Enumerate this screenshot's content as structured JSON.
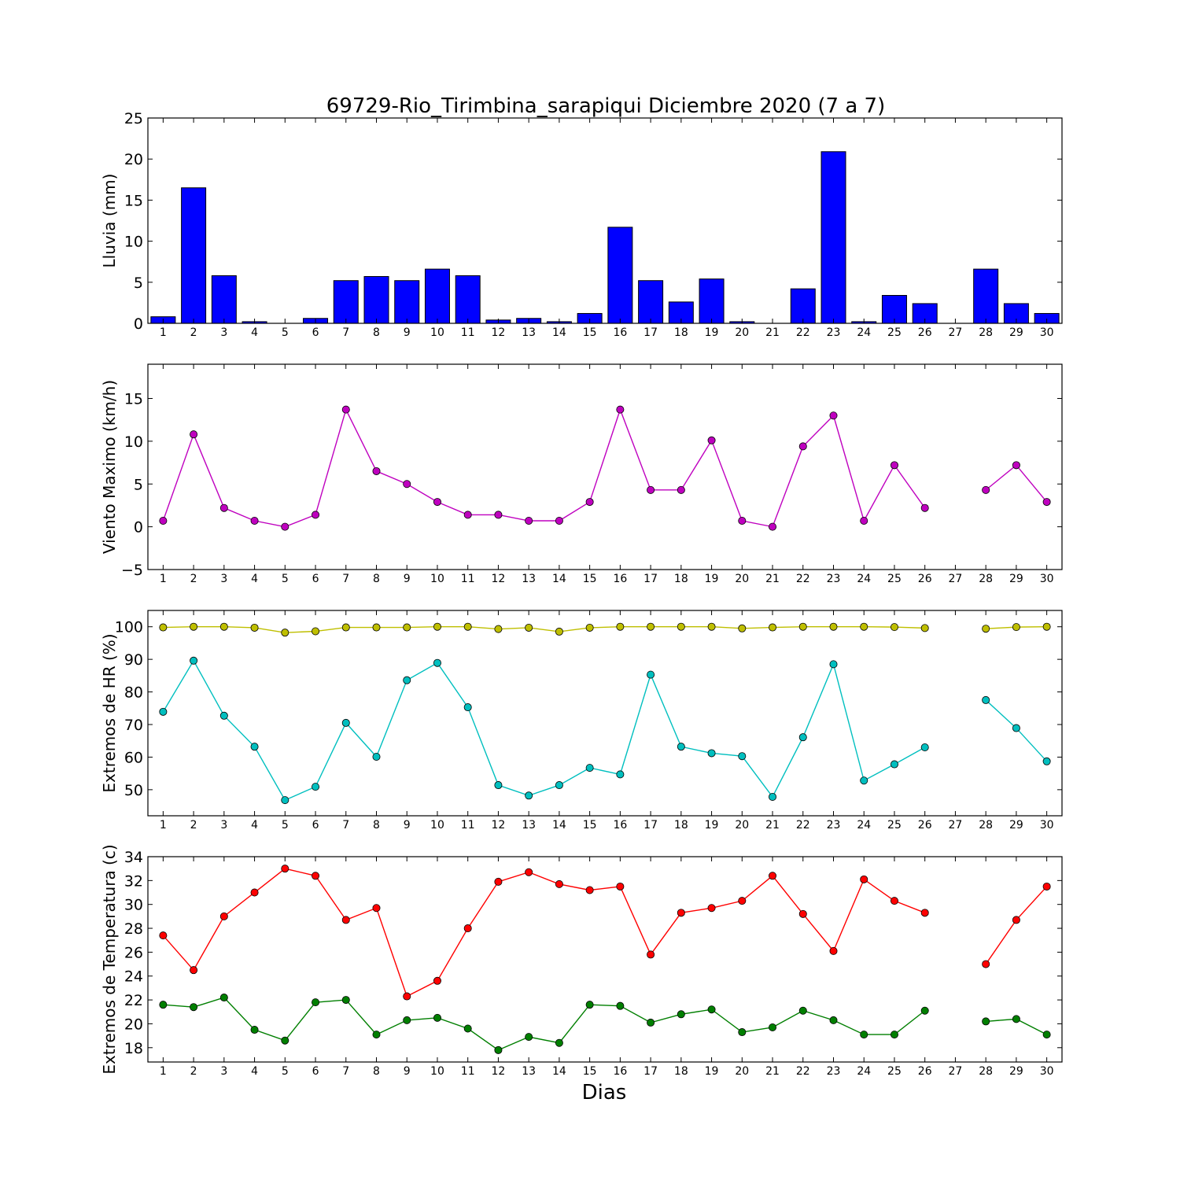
{
  "title": "69729-Rio_Tirimbina_sarapiqui Diciembre 2020  (7 a 7)",
  "xlabel": "Dias",
  "x_ticks": [
    "1",
    "2",
    "3",
    "4",
    "5",
    "6",
    "7",
    "8",
    "9",
    "10",
    "11",
    "12",
    "13",
    "14",
    "15",
    "16",
    "17",
    "18",
    "19",
    "20",
    "21",
    "22",
    "23",
    "24",
    "25",
    "26",
    "27",
    "28",
    "29",
    "30"
  ],
  "chart_data": [
    {
      "type": "bar",
      "ylabel": "Lluvia (mm)",
      "ylim": [
        0,
        25
      ],
      "yticks": [
        0,
        5,
        10,
        15,
        20,
        25
      ],
      "grid": false,
      "color": "#0000ff",
      "categories": [
        "1",
        "2",
        "3",
        "4",
        "5",
        "6",
        "7",
        "8",
        "9",
        "10",
        "11",
        "12",
        "13",
        "14",
        "15",
        "16",
        "17",
        "18",
        "19",
        "20",
        "21",
        "22",
        "23",
        "24",
        "25",
        "26",
        "27",
        "28",
        "29",
        "30"
      ],
      "values": [
        0.8,
        16.5,
        5.8,
        0.2,
        0,
        0.6,
        5.2,
        5.7,
        5.2,
        6.6,
        5.8,
        0.4,
        0.6,
        0.2,
        1.2,
        11.7,
        5.2,
        2.6,
        5.4,
        0.2,
        0,
        4.2,
        20.9,
        0.2,
        3.4,
        2.4,
        0,
        6.6,
        2.4,
        1.2
      ]
    },
    {
      "type": "line",
      "ylabel": "Viento Maximo (km/h)",
      "ylim": [
        -5,
        19
      ],
      "yticks": [
        -5,
        0,
        5,
        10,
        15
      ],
      "grid": false,
      "x": [
        1,
        2,
        3,
        4,
        5,
        6,
        7,
        8,
        9,
        10,
        11,
        12,
        13,
        14,
        15,
        16,
        17,
        18,
        19,
        20,
        21,
        22,
        23,
        24,
        25,
        26,
        27,
        28,
        29,
        30
      ],
      "series": [
        {
          "color": "#bf00bf",
          "values": [
            0.7,
            10.8,
            2.2,
            0.7,
            0,
            1.4,
            13.7,
            6.5,
            5.0,
            2.9,
            1.4,
            1.4,
            0.7,
            0.7,
            2.9,
            13.7,
            4.3,
            4.3,
            10.1,
            0.7,
            0,
            9.4,
            13.0,
            0.7,
            7.2,
            2.2,
            null,
            4.3,
            7.2,
            2.9
          ]
        }
      ]
    },
    {
      "type": "line",
      "ylabel": "Extremos de HR (%)",
      "ylim": [
        42,
        105
      ],
      "yticks": [
        50,
        60,
        70,
        80,
        90,
        100
      ],
      "grid": false,
      "x": [
        1,
        2,
        3,
        4,
        5,
        6,
        7,
        8,
        9,
        10,
        11,
        12,
        13,
        14,
        15,
        16,
        17,
        18,
        19,
        20,
        21,
        22,
        23,
        24,
        25,
        26,
        27,
        28,
        29,
        30
      ],
      "series": [
        {
          "color": "#bfbf00",
          "values": [
            99.8,
            100,
            100,
            99.7,
            98.2,
            98.6,
            99.8,
            99.8,
            99.8,
            100,
            100,
            99.3,
            99.7,
            98.5,
            99.7,
            100,
            100,
            100,
            100,
            99.5,
            99.8,
            100,
            100,
            100,
            99.9,
            99.6,
            null,
            99.4,
            99.9,
            100
          ]
        },
        {
          "color": "#00bfbf",
          "values": [
            73.9,
            89.6,
            72.7,
            63.2,
            46.8,
            50.9,
            70.5,
            60.1,
            83.6,
            88.9,
            75.3,
            51.4,
            48.2,
            51.4,
            56.7,
            54.7,
            85.3,
            63.2,
            61.2,
            60.3,
            47.8,
            66.1,
            88.5,
            52.8,
            57.8,
            63.0,
            null,
            77.5,
            68.9,
            58.7
          ]
        }
      ]
    },
    {
      "type": "line",
      "ylabel": "Extremos de Temperatura (c)",
      "ylim": [
        16.8,
        34
      ],
      "yticks": [
        18,
        20,
        22,
        24,
        26,
        28,
        30,
        32,
        34
      ],
      "grid": false,
      "x": [
        1,
        2,
        3,
        4,
        5,
        6,
        7,
        8,
        9,
        10,
        11,
        12,
        13,
        14,
        15,
        16,
        17,
        18,
        19,
        20,
        21,
        22,
        23,
        24,
        25,
        26,
        27,
        28,
        29,
        30
      ],
      "series": [
        {
          "color": "#ff0000",
          "values": [
            27.4,
            24.5,
            29.0,
            31.0,
            33.0,
            32.4,
            28.7,
            29.7,
            22.3,
            23.6,
            28.0,
            31.9,
            32.7,
            31.7,
            31.2,
            31.5,
            25.8,
            29.3,
            29.7,
            30.3,
            32.4,
            29.2,
            26.1,
            32.1,
            30.3,
            29.3,
            null,
            25.0,
            28.7,
            31.5
          ]
        },
        {
          "color": "#007f00",
          "values": [
            21.6,
            21.4,
            22.2,
            19.5,
            18.6,
            21.8,
            22.0,
            19.1,
            20.3,
            20.5,
            19.6,
            17.8,
            18.9,
            18.4,
            21.6,
            21.5,
            20.1,
            20.8,
            21.2,
            19.3,
            19.7,
            21.1,
            20.3,
            19.1,
            19.1,
            21.1,
            null,
            20.2,
            20.4,
            19.1
          ]
        }
      ]
    }
  ]
}
